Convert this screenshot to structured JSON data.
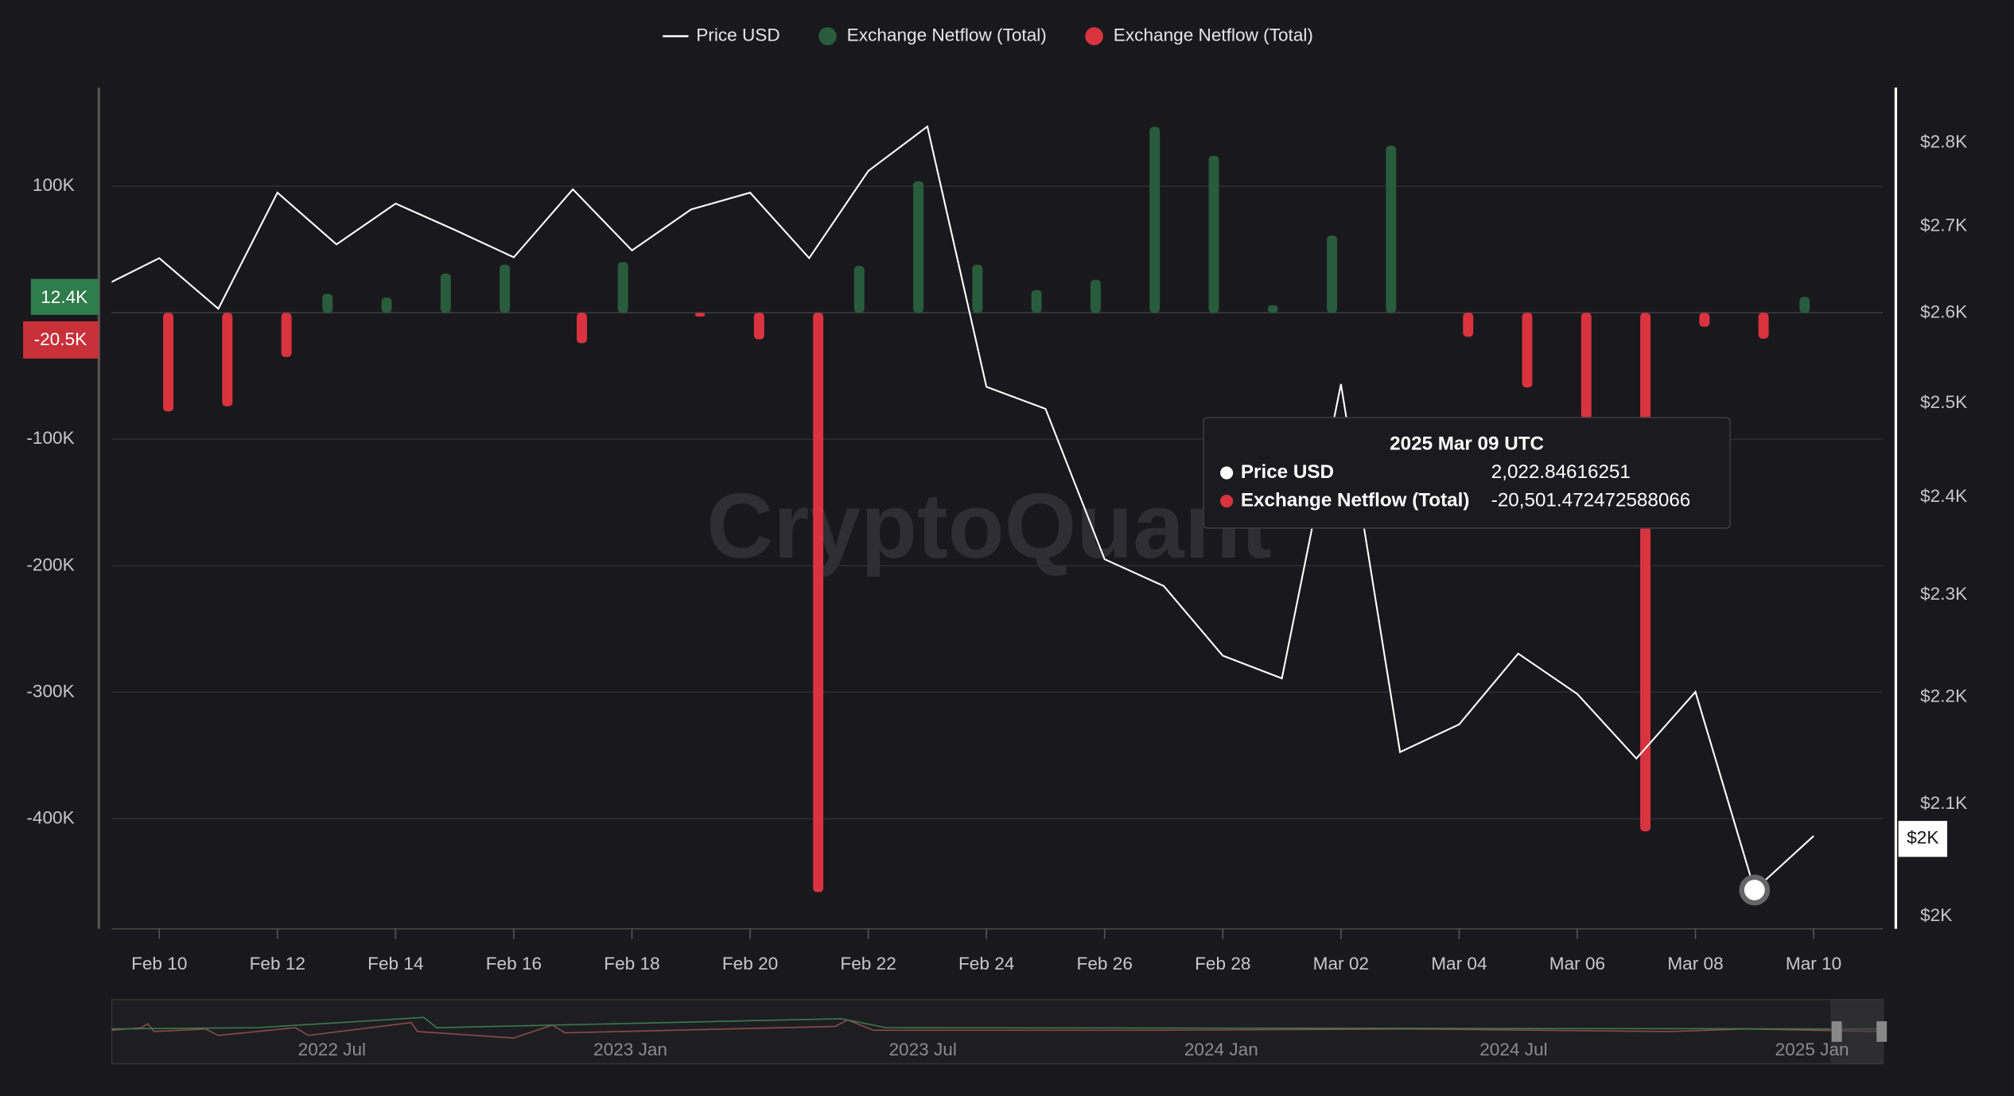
{
  "chart_data": {
    "type": "bar",
    "legend": "top",
    "categories": [
      null,
      "Feb 10",
      null,
      "Feb 12",
      null,
      "Feb 14",
      null,
      "Feb 16",
      null,
      "Feb 18",
      null,
      "Feb 20",
      null,
      "Feb 22",
      null,
      "Feb 24",
      null,
      "Feb 26",
      null,
      "Feb 28",
      null,
      "Mar 02",
      null,
      "Mar 04",
      null,
      "Mar 06",
      null,
      "Mar 08",
      null,
      "Mar 10"
    ],
    "series": [
      {
        "name": "Price USD",
        "type": "line",
        "axis": "y2",
        "color": "#ffffff",
        "values": [
          2629,
          2663,
          2605,
          2740,
          2679,
          2727,
          2696,
          2664,
          2744,
          2672,
          2720,
          2740,
          2663,
          2766,
          2820,
          2518,
          2494,
          2336,
          2309,
          2240,
          2218,
          2521,
          2148,
          2174,
          2242,
          2203,
          2142,
          2205,
          2022.84616251,
          2071
        ]
      },
      {
        "name": "Exchange Netflow (Total)",
        "color": "#285c3c",
        "values": [
          null,
          null,
          null,
          null,
          15000,
          12000,
          31000,
          38000,
          null,
          40000,
          null,
          null,
          null,
          37000,
          104000,
          38000,
          18000,
          26000,
          147000,
          124000,
          6000,
          61000,
          132000,
          null,
          null,
          null,
          null,
          null,
          null,
          12400
        ]
      },
      {
        "name": "Exchange Netflow (Total)",
        "color": "#d9333f",
        "values": [
          null,
          -78000,
          -74000,
          -35000,
          null,
          null,
          null,
          null,
          -24000,
          null,
          -3000,
          -21000,
          -458000,
          null,
          null,
          null,
          null,
          null,
          null,
          null,
          null,
          null,
          null,
          -19000,
          -59000,
          -84000,
          -410000,
          -11000,
          -20501.472472588066,
          null
        ]
      }
    ],
    "ylim": [
      -487000,
      176000
    ],
    "yticks": [
      {
        "value": 100000,
        "label": "100K"
      },
      {
        "value": -100000,
        "label": "-100K"
      },
      {
        "value": -200000,
        "label": "-200K"
      },
      {
        "value": -300000,
        "label": "-300K"
      },
      {
        "value": -400000,
        "label": "-400K"
      }
    ],
    "y2lim": [
      1989,
      2865
    ],
    "y2_scale": "log",
    "y2ticks": [
      {
        "value": 2000,
        "label": "$2K"
      },
      {
        "value": 2100,
        "label": "$2.1K"
      },
      {
        "value": 2200,
        "label": "$2.2K"
      },
      {
        "value": 2300,
        "label": "$2.3K"
      },
      {
        "value": 2400,
        "label": "$2.4K"
      },
      {
        "value": 2500,
        "label": "$2.5K"
      },
      {
        "value": 2600,
        "label": "$2.6K"
      },
      {
        "value": 2700,
        "label": "$2.7K"
      },
      {
        "value": 2800,
        "label": "$2.8K"
      }
    ],
    "grid": true,
    "watermark": "CryptoQuant",
    "axis_tags": {
      "netflow_positive": "12.4K",
      "netflow_negative": "-20.5K",
      "price": "$2K"
    },
    "tooltip": {
      "title": "2025 Mar 09 UTC",
      "rows": [
        {
          "name": "Price USD",
          "value": "2,022.84616251"
        },
        {
          "name": "Exchange Netflow (Total)",
          "value": "-20,501.472472588066"
        }
      ]
    },
    "navigator_labels": [
      "2022 Jul",
      "2023 Jan",
      "2023 Jul",
      "2024 Jan",
      "2024 Jul",
      "2025 Jan"
    ]
  }
}
